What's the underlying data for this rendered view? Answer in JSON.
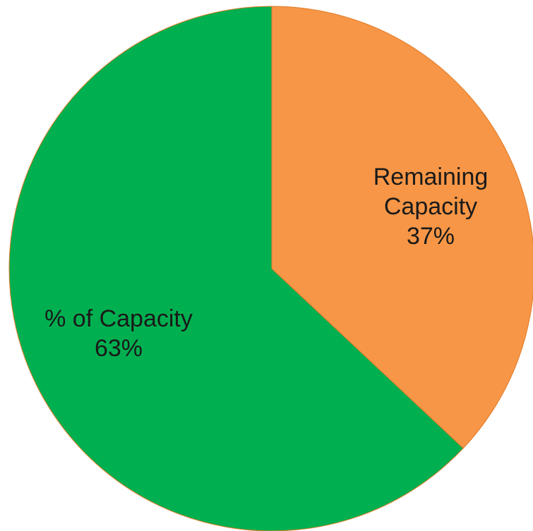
{
  "chart_data": {
    "type": "pie",
    "slices": [
      {
        "label_lines": [
          "Remaining",
          "Capacity"
        ],
        "value_label": "37%",
        "value": 37,
        "color": "#f79646"
      },
      {
        "label_lines": [
          "% of Capacity"
        ],
        "value_label": "63%",
        "value": 63,
        "color": "#00b050"
      }
    ],
    "start_angle_deg": 0,
    "direction": "clockwise"
  }
}
